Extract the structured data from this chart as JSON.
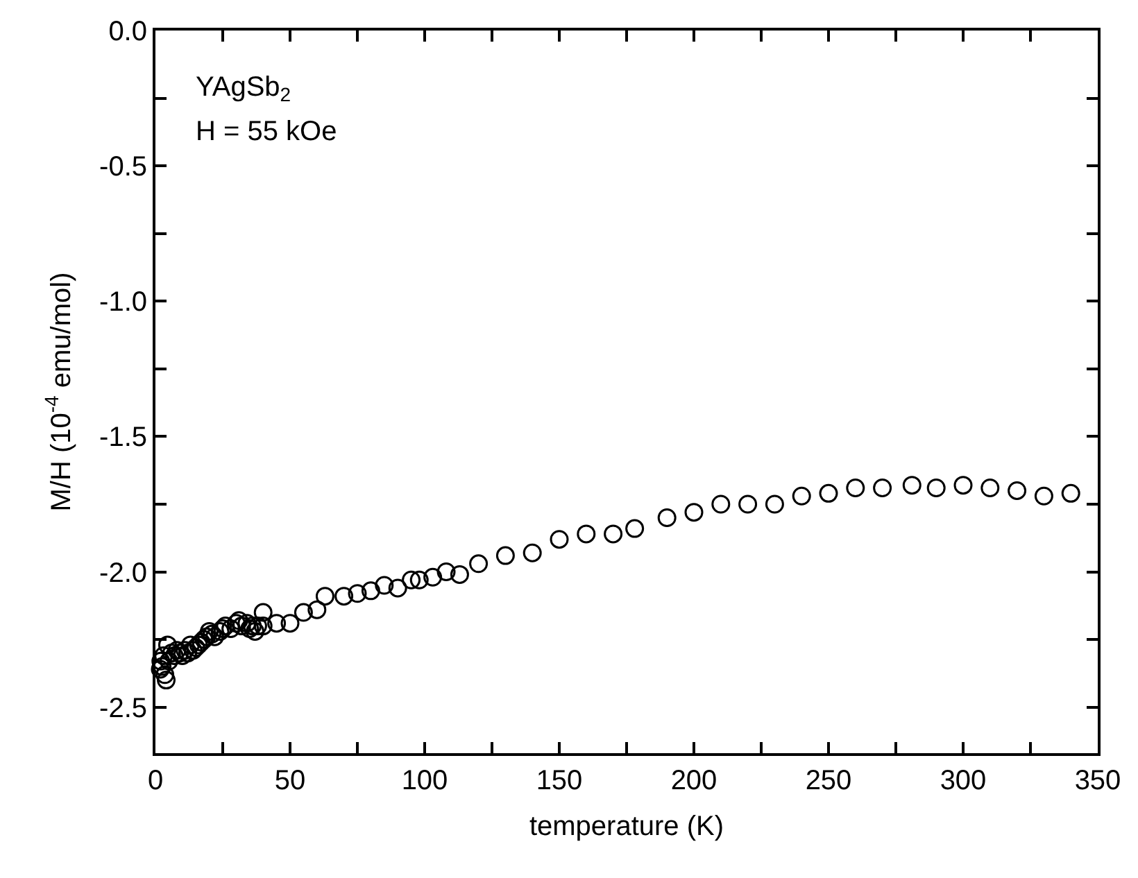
{
  "chart_data": {
    "type": "scatter",
    "xlabel": "temperature (K)",
    "ylabel": "M/H (10$^{-4}$ emu/mol)",
    "annotations": [
      "YAgSb$_{2}$",
      "H = 55 kOe"
    ],
    "x": [
      1.8,
      2,
      2.5,
      3,
      3.5,
      4,
      4.5,
      5,
      6,
      7,
      8,
      9,
      10,
      11,
      12,
      13,
      14,
      15,
      16,
      17,
      18,
      19,
      20,
      21,
      22,
      24,
      25,
      26,
      28,
      30,
      31,
      32,
      34,
      35,
      36,
      37,
      38,
      40,
      40,
      45,
      50,
      55,
      60,
      63,
      70,
      75,
      80,
      85,
      90,
      95,
      98,
      103,
      108,
      113,
      120,
      130,
      140,
      150,
      160,
      170,
      178,
      190,
      200,
      210,
      220,
      230,
      240,
      250,
      260,
      270,
      281,
      290,
      300,
      310,
      320,
      330,
      340
    ],
    "series": [
      {
        "color": "#000000",
        "values": [
          -2.36,
          -2.33,
          -2.35,
          -2.31,
          -2.38,
          -2.4,
          -2.27,
          -2.33,
          -2.3,
          -2.31,
          -2.29,
          -2.3,
          -2.31,
          -2.29,
          -2.3,
          -2.27,
          -2.29,
          -2.28,
          -2.27,
          -2.26,
          -2.25,
          -2.24,
          -2.22,
          -2.23,
          -2.24,
          -2.22,
          -2.21,
          -2.2,
          -2.21,
          -2.19,
          -2.18,
          -2.2,
          -2.19,
          -2.21,
          -2.2,
          -2.22,
          -2.2,
          -2.15,
          -2.2,
          -2.19,
          -2.19,
          -2.15,
          -2.14,
          -2.09,
          -2.09,
          -2.08,
          -2.07,
          -2.05,
          -2.06,
          -2.03,
          -2.03,
          -2.02,
          -2.0,
          -2.01,
          -1.97,
          -1.94,
          -1.93,
          -1.88,
          -1.86,
          -1.86,
          -1.84,
          -1.8,
          -1.78,
          -1.75,
          -1.75,
          -1.75,
          -1.72,
          -1.71,
          -1.69,
          -1.69,
          -1.68,
          -1.69,
          -1.68,
          -1.69,
          -1.7,
          -1.72,
          -1.71
        ]
      }
    ],
    "marker": "circle",
    "xlim": [
      0,
      350
    ],
    "xticks": [
      0,
      {
        "value": 25,
        "label": null
      },
      50,
      {
        "value": 75,
        "label": null
      },
      100,
      {
        "value": 125,
        "label": null
      },
      150,
      {
        "value": 175,
        "label": null
      },
      200,
      {
        "value": 225,
        "label": null
      },
      250,
      {
        "value": 275,
        "label": null
      },
      300,
      {
        "value": 325,
        "label": null
      },
      350
    ],
    "ylim": [
      -2.67,
      0
    ],
    "yticks": [
      {
        "value": -2.5,
        "label": "-2.5"
      },
      {
        "value": -2.25,
        "label": null
      },
      {
        "value": -2.0,
        "label": "-2.0"
      },
      {
        "value": -1.75,
        "label": null
      },
      {
        "value": -1.5,
        "label": "-1.5"
      },
      {
        "value": -1.25,
        "label": null
      },
      {
        "value": -1.0,
        "label": "-1.0"
      },
      {
        "value": -0.75,
        "label": null
      },
      {
        "value": -0.5,
        "label": "-0.5"
      },
      {
        "value": -0.25,
        "label": null
      },
      {
        "value": 0.0,
        "label": "0.0"
      }
    ]
  }
}
